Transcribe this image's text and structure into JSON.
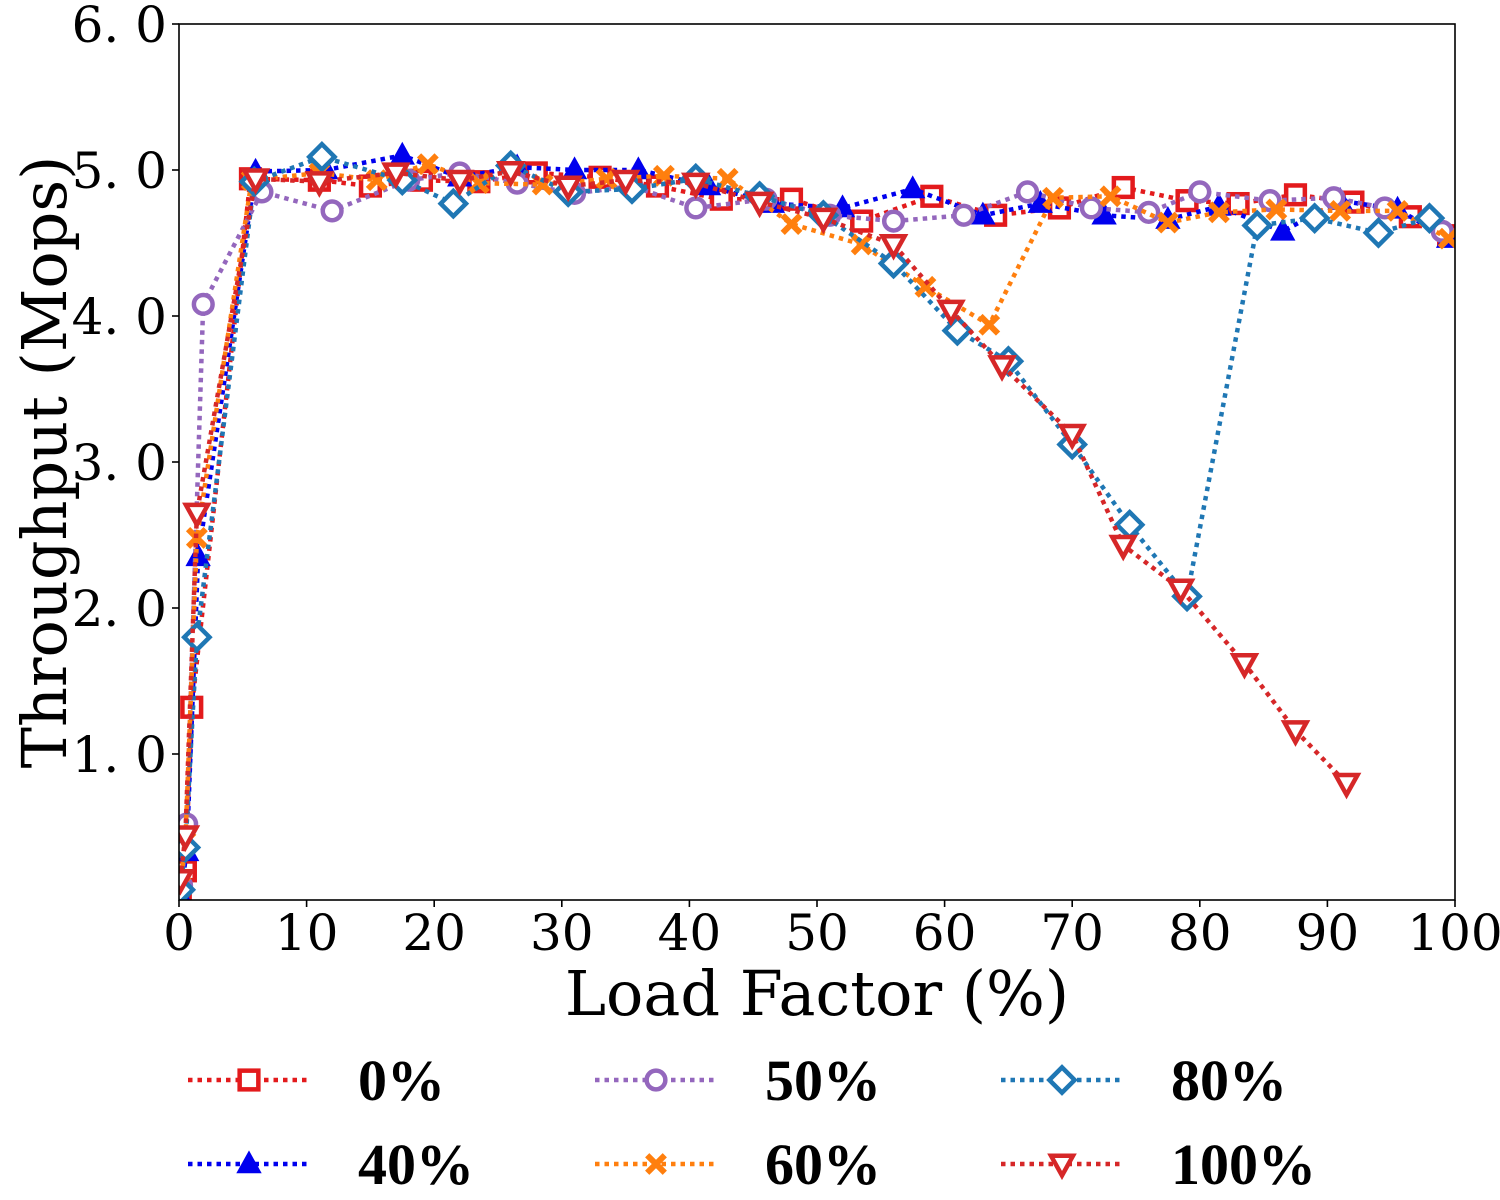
{
  "chart_data": {
    "type": "line",
    "title": "",
    "xlabel": "Load Factor (%)",
    "ylabel": "Throughput (Mops)",
    "xlim": [
      0,
      100
    ],
    "ylim": [
      0,
      6.0
    ],
    "x_ticks": [
      0,
      10,
      20,
      30,
      40,
      50,
      60,
      70,
      80,
      90,
      100
    ],
    "x_tick_labels": [
      "0",
      "10",
      "20",
      "30",
      "40",
      "50",
      "60",
      "70",
      "80",
      "90",
      "100"
    ],
    "y_ticks": [
      1.0,
      2.0,
      3.0,
      4.0,
      5.0,
      6.0
    ],
    "y_tick_labels": [
      "1. 0",
      "2. 0",
      "3. 0",
      "4. 0",
      "5. 0",
      "6. 0"
    ],
    "grid": false,
    "legend_position": "bottom",
    "series": [
      {
        "name": "0%",
        "color": "#e31a1c",
        "marker": "square",
        "marker_filled": false,
        "points": [
          [
            0.1,
            0.06
          ],
          [
            0.5,
            0.2
          ],
          [
            1.0,
            1.32
          ],
          [
            5.6,
            4.94
          ],
          [
            11.0,
            4.93
          ],
          [
            15.0,
            4.89
          ],
          [
            19.0,
            4.93
          ],
          [
            23.5,
            4.92
          ],
          [
            28.0,
            4.98
          ],
          [
            33.0,
            4.95
          ],
          [
            37.5,
            4.89
          ],
          [
            42.5,
            4.8
          ],
          [
            48.0,
            4.8
          ],
          [
            53.5,
            4.65
          ],
          [
            59.0,
            4.82
          ],
          [
            64.0,
            4.69
          ],
          [
            69.0,
            4.74
          ],
          [
            74.0,
            4.88
          ],
          [
            79.0,
            4.79
          ],
          [
            83.0,
            4.77
          ],
          [
            87.5,
            4.83
          ],
          [
            92.0,
            4.78
          ],
          [
            96.5,
            4.68
          ],
          [
            99.5,
            4.55
          ]
        ]
      },
      {
        "name": "40%",
        "color": "#0000ee",
        "marker": "triangle-up",
        "marker_filled": true,
        "points": [
          [
            0.1,
            0.03
          ],
          [
            0.6,
            0.33
          ],
          [
            1.5,
            2.35
          ],
          [
            6.0,
            4.99
          ],
          [
            11.5,
            5.0
          ],
          [
            17.5,
            5.1
          ],
          [
            22.0,
            4.95
          ],
          [
            26.5,
            5.02
          ],
          [
            31.0,
            5.0
          ],
          [
            36.0,
            5.0
          ],
          [
            41.5,
            4.89
          ],
          [
            46.5,
            4.77
          ],
          [
            52.0,
            4.74
          ],
          [
            57.5,
            4.87
          ],
          [
            63.0,
            4.69
          ],
          [
            67.5,
            4.77
          ],
          [
            72.5,
            4.69
          ],
          [
            77.5,
            4.66
          ],
          [
            81.5,
            4.75
          ],
          [
            86.5,
            4.58
          ],
          [
            91.0,
            4.79
          ],
          [
            95.5,
            4.73
          ],
          [
            99.5,
            4.53
          ]
        ]
      },
      {
        "name": "50%",
        "color": "#9467bd",
        "marker": "circle",
        "marker_filled": false,
        "points": [
          [
            0.2,
            0.1
          ],
          [
            0.6,
            0.52
          ],
          [
            1.9,
            4.08
          ],
          [
            6.5,
            4.85
          ],
          [
            12.0,
            4.72
          ],
          [
            18.0,
            4.93
          ],
          [
            22.0,
            4.98
          ],
          [
            26.5,
            4.91
          ],
          [
            31.0,
            4.84
          ],
          [
            35.5,
            4.89
          ],
          [
            40.5,
            4.74
          ],
          [
            46.0,
            4.8
          ],
          [
            51.0,
            4.69
          ],
          [
            56.0,
            4.65
          ],
          [
            61.5,
            4.69
          ],
          [
            66.5,
            4.85
          ],
          [
            71.5,
            4.74
          ],
          [
            76.0,
            4.71
          ],
          [
            80.0,
            4.85
          ],
          [
            85.5,
            4.79
          ],
          [
            90.5,
            4.81
          ],
          [
            94.5,
            4.74
          ],
          [
            99.0,
            4.58
          ]
        ]
      },
      {
        "name": "60%",
        "color": "#ff7f0e",
        "marker": "x",
        "marker_filled": true,
        "points": [
          [
            0.1,
            0.1
          ],
          [
            0.5,
            0.4
          ],
          [
            1.4,
            2.48
          ],
          [
            5.7,
            4.93
          ],
          [
            11.0,
            4.98
          ],
          [
            15.5,
            4.93
          ],
          [
            19.5,
            5.04
          ],
          [
            23.5,
            4.91
          ],
          [
            28.5,
            4.9
          ],
          [
            33.5,
            4.94
          ],
          [
            38.0,
            4.96
          ],
          [
            43.0,
            4.94
          ],
          [
            48.0,
            4.63
          ],
          [
            53.5,
            4.49
          ],
          [
            58.5,
            4.2
          ],
          [
            63.5,
            3.94
          ],
          [
            68.5,
            4.81
          ],
          [
            73.0,
            4.82
          ],
          [
            77.5,
            4.64
          ],
          [
            81.5,
            4.71
          ],
          [
            86.0,
            4.73
          ],
          [
            91.0,
            4.72
          ],
          [
            95.5,
            4.72
          ],
          [
            99.5,
            4.53
          ]
        ]
      },
      {
        "name": "80%",
        "color": "#1f77b4",
        "marker": "diamond",
        "marker_filled": false,
        "points": [
          [
            0.1,
            0.07
          ],
          [
            0.5,
            0.36
          ],
          [
            1.4,
            1.8
          ],
          [
            5.9,
            4.92
          ],
          [
            11.2,
            5.09
          ],
          [
            17.5,
            4.93
          ],
          [
            21.5,
            4.77
          ],
          [
            26.0,
            5.03
          ],
          [
            30.5,
            4.85
          ],
          [
            35.5,
            4.87
          ],
          [
            40.5,
            4.94
          ],
          [
            45.5,
            4.82
          ],
          [
            50.5,
            4.69
          ],
          [
            56.0,
            4.36
          ],
          [
            61.0,
            3.9
          ],
          [
            65.0,
            3.69
          ],
          [
            70.0,
            3.12
          ],
          [
            74.5,
            2.57
          ],
          [
            79.0,
            2.08
          ],
          [
            84.5,
            4.62
          ],
          [
            89.0,
            4.67
          ],
          [
            94.0,
            4.57
          ],
          [
            98.0,
            4.67
          ]
        ]
      },
      {
        "name": "100%",
        "color": "#d62728",
        "marker": "triangle-down",
        "marker_filled": false,
        "points": [
          [
            0.1,
            0.14
          ],
          [
            0.5,
            0.44
          ],
          [
            1.4,
            2.65
          ],
          [
            6.0,
            4.94
          ],
          [
            11.0,
            4.92
          ],
          [
            17.0,
            4.98
          ],
          [
            22.0,
            4.93
          ],
          [
            26.0,
            4.99
          ],
          [
            30.5,
            4.89
          ],
          [
            35.0,
            4.93
          ],
          [
            40.5,
            4.91
          ],
          [
            45.5,
            4.78
          ],
          [
            50.5,
            4.67
          ],
          [
            56.0,
            4.49
          ],
          [
            60.5,
            4.04
          ],
          [
            64.5,
            3.66
          ],
          [
            70.0,
            3.19
          ],
          [
            74.0,
            2.43
          ],
          [
            78.5,
            2.13
          ],
          [
            83.5,
            1.62
          ],
          [
            87.5,
            1.16
          ],
          [
            91.5,
            0.8
          ]
        ]
      }
    ]
  }
}
